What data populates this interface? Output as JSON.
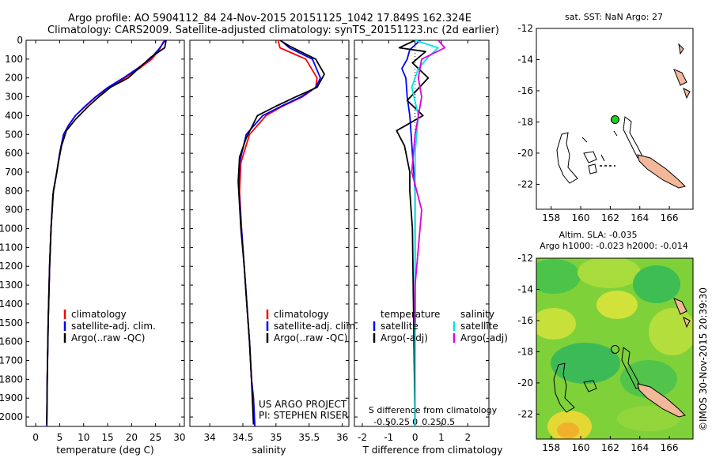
{
  "header": {
    "line1": "Argo profile: AO 5904112_84 24-Nov-2015 20151125_1042 17.849S 162.324E",
    "line2": "Climatology: CARS2009. Satellite-adjusted climatology: synTS_20151123.nc (2d earlier)"
  },
  "credits": {
    "project": "US ARGO PROJECT",
    "pi": "PI: STEPHEN RISER",
    "imos": "©IMOS 30-Nov-2015 20:39:30"
  },
  "chart_data": [
    {
      "type": "line",
      "panel": "temperature",
      "xlabel": "temperature (deg C)",
      "xlim": [
        -2,
        31
      ],
      "xticks": [
        0,
        5,
        10,
        15,
        20,
        25,
        30
      ],
      "ylim": [
        0,
        2050
      ],
      "yticks": [
        0,
        100,
        200,
        300,
        400,
        500,
        600,
        700,
        800,
        900,
        1000,
        1100,
        1200,
        1300,
        1400,
        1500,
        1600,
        1700,
        1800,
        1900,
        2000
      ],
      "legend": [
        "climatology",
        "satellite-adj. clim.",
        "Argo(..raw -QC)"
      ],
      "legend_placement": "lower-center",
      "series": [
        {
          "name": "climatology",
          "color": "#ff0000",
          "x": [
            26.8,
            25.8,
            24.2,
            21.6,
            18.6,
            15.3,
            12.6,
            10.4,
            8.3,
            6.9,
            5.8,
            5.0,
            4.4,
            3.7,
            3.2,
            2.9,
            2.6,
            2.4,
            2.3
          ],
          "depth": [
            0,
            50,
            100,
            150,
            200,
            250,
            300,
            350,
            400,
            450,
            500,
            600,
            700,
            800,
            1000,
            1200,
            1500,
            1800,
            2050
          ]
        },
        {
          "name": "satellite-adj. clim.",
          "color": "#0000ff",
          "x": [
            27.0,
            25.6,
            23.8,
            21.2,
            18.3,
            15.1,
            12.5,
            10.3,
            8.3,
            6.9,
            5.8,
            5.0,
            4.4,
            3.7,
            3.2,
            2.9,
            2.6,
            2.4,
            2.3
          ],
          "depth": [
            0,
            50,
            100,
            150,
            200,
            250,
            300,
            350,
            400,
            450,
            500,
            600,
            700,
            800,
            1000,
            1200,
            1500,
            1800,
            2050
          ]
        },
        {
          "name": "Argo(..raw -QC)",
          "color": "#000000",
          "x": [
            27.2,
            26.9,
            24.0,
            21.9,
            19.3,
            15.6,
            13.2,
            11.0,
            8.3,
            6.4,
            5.4,
            4.8,
            4.2,
            3.6,
            3.2,
            2.9,
            2.6,
            2.4,
            2.3
          ],
          "depth": [
            0,
            40,
            90,
            140,
            200,
            250,
            300,
            350,
            420,
            480,
            560,
            640,
            730,
            820,
            1000,
            1200,
            1500,
            1800,
            2040
          ]
        }
      ]
    },
    {
      "type": "line",
      "panel": "salinity",
      "xlabel": "salinity",
      "xlim": [
        33.7,
        36.1
      ],
      "xticks": [
        34,
        34.5,
        35,
        35.5,
        36
      ],
      "ylim": [
        0,
        2050
      ],
      "legend": [
        "climatology",
        "satellite-adj. clim.",
        "Argo(..raw -QC)"
      ],
      "legend_placement": "lower-center",
      "series": [
        {
          "name": "climatology",
          "color": "#ff0000",
          "x": [
            35.03,
            35.06,
            35.45,
            35.62,
            35.6,
            35.4,
            35.1,
            34.85,
            34.6,
            34.47,
            34.45,
            34.48,
            34.52,
            34.56,
            34.6,
            34.63,
            34.66,
            34.68
          ],
          "depth": [
            0,
            40,
            100,
            200,
            250,
            300,
            350,
            400,
            500,
            650,
            800,
            1000,
            1200,
            1400,
            1600,
            1800,
            1900,
            2050
          ]
        },
        {
          "name": "satellite-adj. clim.",
          "color": "#0000ff",
          "x": [
            35.07,
            35.2,
            35.55,
            35.67,
            35.6,
            35.38,
            35.08,
            34.8,
            34.55,
            34.45,
            34.44,
            34.48,
            34.52,
            34.56,
            34.6,
            34.63,
            34.66,
            34.68
          ],
          "depth": [
            0,
            40,
            100,
            200,
            250,
            300,
            350,
            400,
            500,
            650,
            800,
            1000,
            1200,
            1400,
            1600,
            1800,
            1900,
            2050
          ]
        },
        {
          "name": "Argo(..raw -QC)",
          "color": "#000000",
          "x": [
            35.06,
            35.2,
            35.6,
            35.73,
            35.62,
            35.3,
            35.0,
            34.72,
            34.55,
            34.45,
            34.43,
            34.47,
            34.52,
            34.56,
            34.6,
            34.63,
            34.66
          ],
          "depth": [
            0,
            30,
            100,
            180,
            250,
            300,
            350,
            400,
            520,
            620,
            750,
            1000,
            1200,
            1400,
            1600,
            1800,
            2040
          ]
        }
      ]
    },
    {
      "type": "line",
      "panel": "difference",
      "xlabel": "T difference from climatology",
      "x2label": "S difference from climatology",
      "xlim": [
        -2.3,
        2.8
      ],
      "xticks": [
        -2,
        -1,
        0,
        1,
        2
      ],
      "x2ticks": [
        "-0.5",
        "-0.25",
        "0",
        "0.25",
        "0.5"
      ],
      "ylim": [
        0,
        2050
      ],
      "legend": [
        "temperature",
        "satellite",
        "Argo(-adj)",
        "salinity",
        "satellite",
        "Argo(-adj)"
      ],
      "legend_placement": "lower-center",
      "series": [
        {
          "name": "satellite",
          "group": "temperature",
          "color": "#0000ff",
          "x": [
            0.2,
            -0.2,
            -0.3,
            -0.5,
            -0.35,
            -0.3,
            -0.2,
            -0.15,
            -0.1,
            -0.05,
            0,
            0,
            0
          ],
          "depth": [
            0,
            50,
            100,
            150,
            200,
            300,
            400,
            500,
            600,
            700,
            800,
            1000,
            2050
          ]
        },
        {
          "name": "Argo(-adj)",
          "group": "temperature",
          "color": "#000000",
          "x": [
            0,
            -0.6,
            0.4,
            -0.1,
            0.5,
            -0.3,
            0.3,
            -0.7,
            -0.4,
            -0.2,
            -0.2,
            -0.1,
            0
          ],
          "depth": [
            0,
            40,
            60,
            120,
            200,
            320,
            400,
            480,
            560,
            700,
            800,
            1000,
            2050
          ]
        },
        {
          "name": "satellite",
          "group": "salinity",
          "color": "#00e5e5",
          "x": [
            0.0,
            0.35,
            0.2,
            0.05,
            -0.05,
            0.05,
            0.0,
            0.0,
            0.0,
            0.0,
            0.0
          ],
          "depth": [
            0,
            40,
            90,
            150,
            250,
            400,
            600,
            800,
            1000,
            1500,
            2050
          ]
        },
        {
          "name": "Argo(-adj)",
          "group": "salinity",
          "color": "#dd00dd",
          "x": [
            0.35,
            0.45,
            0.1,
            0.05,
            0.1,
            0.0,
            -0.05,
            0.1,
            0.0,
            0.0
          ],
          "depth": [
            0,
            40,
            100,
            200,
            300,
            500,
            700,
            900,
            1300,
            1500
          ]
        }
      ]
    },
    {
      "type": "scatter",
      "panel": "map-sst",
      "title": "sat. SST: NaN Argo: 27",
      "xlim": [
        157,
        167.6
      ],
      "xticks": [
        158,
        160,
        162,
        164,
        166
      ],
      "ylim": [
        -23.6,
        -12
      ],
      "yticks": [
        -12,
        -14,
        -16,
        -18,
        -20,
        -22
      ],
      "argo_position": {
        "lon": 162.324,
        "lat": -17.849,
        "fill": "#22cc22"
      }
    },
    {
      "type": "heatmap",
      "panel": "map-sla",
      "title": "Altim. SLA: -0.035",
      "subtitle": "Argo h1000: -0.023 h2000: -0.014",
      "xlim": [
        157,
        167.6
      ],
      "xticks": [
        158,
        160,
        162,
        164,
        166
      ],
      "ylim": [
        -23.6,
        -12
      ],
      "yticks": [
        -12,
        -14,
        -16,
        -18,
        -20,
        -22
      ],
      "argo_position": {
        "lon": 162.324,
        "lat": -17.849
      }
    }
  ]
}
